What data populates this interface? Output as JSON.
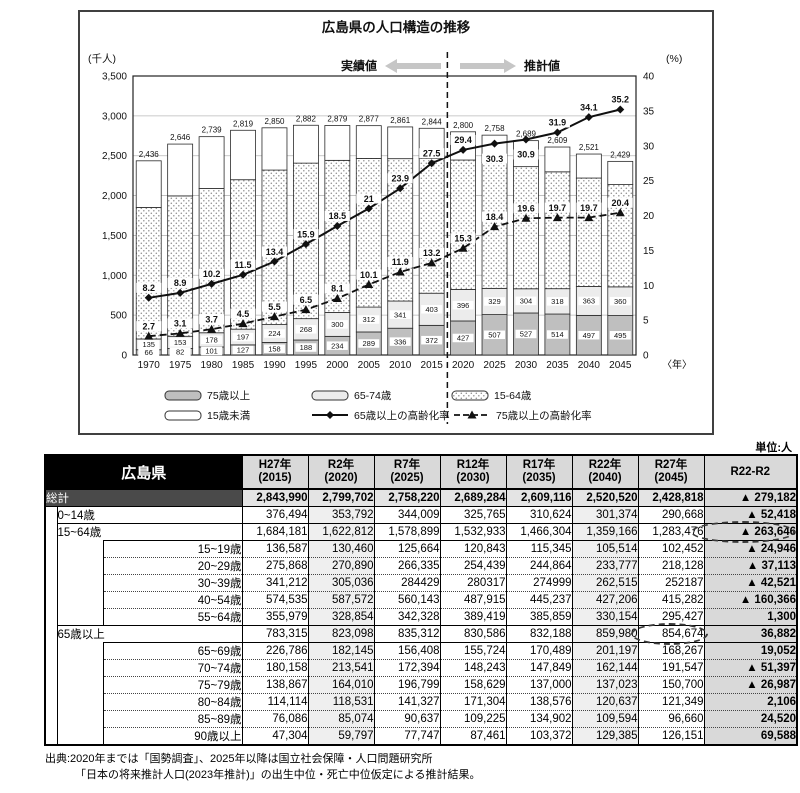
{
  "chart_data": {
    "type": "combo",
    "title": "広島県の人口構造の推移",
    "unit_left": "(千人)",
    "unit_right": "(%)",
    "actual_label": "実績値",
    "forecast_label": "推計値",
    "year_suffix": "〈年〉",
    "categories": [
      "1970",
      "1975",
      "1980",
      "1985",
      "1990",
      "1995",
      "2000",
      "2005",
      "2010",
      "2015",
      "2020",
      "2025",
      "2030",
      "2035",
      "2040",
      "2045"
    ],
    "separator_after_index": 9,
    "y_left": {
      "min": 0,
      "max": 3500,
      "ticks": [
        "0",
        "500",
        "1,000",
        "1,500",
        "2,000",
        "2,500",
        "3,000",
        "3,500"
      ]
    },
    "y_right": {
      "min": 0,
      "max": 40,
      "ticks": [
        "0",
        "5",
        "10",
        "15",
        "20",
        "25",
        "30",
        "35",
        "40"
      ]
    },
    "totals_labels": [
      "2,436",
      "2,646",
      "2,739",
      "2,819",
      "2,850",
      "2,882",
      "2,879",
      "2,877",
      "2,861",
      "2,844",
      "2,800",
      "2,758",
      "2,689",
      "2,609",
      "2,521",
      "2,429"
    ],
    "series": [
      {
        "name": "75歳以上",
        "type": "bar",
        "values": [
          66,
          82,
          101,
          127,
          158,
          188,
          234,
          289,
          336,
          372,
          427,
          507,
          527,
          514,
          497,
          495
        ],
        "labels": [
          "66",
          "82",
          "101",
          "127",
          "158",
          "188",
          "234",
          "289",
          "336",
          "372",
          "427",
          "507",
          "527",
          "514",
          "497",
          "495"
        ]
      },
      {
        "name": "65-74歳",
        "type": "bar",
        "values": [
          135,
          153,
          178,
          197,
          224,
          268,
          300,
          312,
          341,
          403,
          396,
          329,
          304,
          318,
          363,
          360
        ],
        "labels": [
          "135",
          "153",
          "178",
          "197",
          "224",
          "268",
          "300",
          "312",
          "341",
          "403",
          "396",
          "329",
          "304",
          "318",
          "363",
          "360"
        ]
      },
      {
        "name": "15-64歳",
        "type": "bar",
        "values": [
          1650,
          1761,
          1810,
          1875,
          1938,
          1951,
          1908,
          1865,
          1786,
          1693,
          1623,
          1578,
          1532,
          1466,
          1360,
          1283
        ],
        "labels": null
      },
      {
        "name": "15歳未満",
        "type": "bar",
        "values": [
          585,
          650,
          650,
          620,
          530,
          475,
          437,
          411,
          398,
          376,
          354,
          344,
          326,
          311,
          301,
          291
        ],
        "labels": null
      },
      {
        "name": "65歳以上の高齢化率",
        "type": "line",
        "style": "solid",
        "marker": "diamond",
        "values": [
          8.2,
          8.9,
          10.2,
          11.5,
          13.4,
          15.9,
          18.5,
          21,
          23.9,
          27.5,
          29.4,
          30.3,
          30.9,
          31.9,
          34.1,
          35.2
        ],
        "labels": [
          "8.2",
          "8.9",
          "10.2",
          "11.5",
          "13.4",
          "15.9",
          "18.5",
          "21",
          "23.9",
          "27.5",
          "29.4",
          "30.3",
          "30.9",
          "31.9",
          "34.1",
          "35.2"
        ],
        "label_side": [
          "a",
          "a",
          "a",
          "a",
          "a",
          "a",
          "a",
          "a",
          "a",
          "a",
          "a",
          "b",
          "b",
          "a",
          "a",
          "a"
        ]
      },
      {
        "name": "75歳以上の高齢化率",
        "type": "line",
        "style": "dashed",
        "marker": "triangle",
        "values": [
          2.7,
          3.1,
          3.7,
          4.5,
          5.5,
          6.5,
          8.1,
          10.1,
          11.9,
          13.2,
          15.3,
          18.4,
          19.6,
          19.7,
          19.7,
          20.4
        ],
        "labels": [
          "2.7",
          "3.1",
          "3.7",
          "4.5",
          "5.5",
          "6.5",
          "8.1",
          "10.1",
          "11.9",
          "13.2",
          "15.3",
          "18.4",
          "19.6",
          "19.7",
          "19.7",
          "20.4"
        ],
        "label_side": [
          "a",
          "a",
          "a",
          "a",
          "a",
          "a",
          "a",
          "a",
          "a",
          "a",
          "a",
          "a",
          "a",
          "a",
          "a",
          "a"
        ]
      }
    ],
    "legend": {
      "row1": [
        {
          "kind": "bar75",
          "label": "75歳以上"
        },
        {
          "kind": "bar6574",
          "label": "65-74歳"
        },
        {
          "kind": "bardots",
          "label": "15-64歳"
        }
      ],
      "row2": [
        {
          "kind": "barwhite",
          "label": "15歳未満"
        },
        {
          "kind": "linesolid",
          "label": "65歳以上の高齢化率"
        },
        {
          "kind": "linedashed",
          "label": "75歳以上の高齢化率"
        }
      ]
    }
  },
  "colors": {
    "bar_75plus": "#bfbfbf",
    "bar_65_74": "#ececec",
    "bar_15_64_dotted": "#ffffff",
    "bar_under15": "#ffffff",
    "line": "#101010",
    "arrow_gray": "#c6c6c6",
    "grid": "#b8b8b8",
    "table_header_bg": "#000000",
    "table_total_label_bg": "#4a4a4a",
    "table_year_header_bg": "#d9d9d9",
    "table_shaded_col_bg": "#efefef",
    "table_diff_col_bg": "#d9d9d9"
  },
  "table": {
    "unit": "単位:人",
    "corner": "広島県",
    "columns": [
      {
        "era": "H27年",
        "paren": "(2015)"
      },
      {
        "era": "R2年",
        "paren": "(2020)"
      },
      {
        "era": "R7年",
        "paren": "(2025)"
      },
      {
        "era": "R12年",
        "paren": "(2030)"
      },
      {
        "era": "R17年",
        "paren": "(2035)"
      },
      {
        "era": "R22年",
        "paren": "(2040)"
      },
      {
        "era": "R27年",
        "paren": "(2045)"
      }
    ],
    "diff_header": "R22-R2",
    "rows": [
      {
        "label": "総計",
        "level": 0,
        "style": "total",
        "values": [
          "2,843,990",
          "2,799,702",
          "2,758,220",
          "2,689,284",
          "2,609,116",
          "2,520,520",
          "2,428,818"
        ],
        "diff": "▲ 279,182"
      },
      {
        "label": "0~14歳",
        "level": 1,
        "values": [
          "376,494",
          "353,792",
          "344,009",
          "325,765",
          "310,624",
          "301,374",
          "290,668"
        ],
        "diff": "▲ 52,418"
      },
      {
        "label": "15~64歳",
        "level": 1,
        "diff_ellipse": true,
        "values": [
          "1,684,181",
          "1,622,812",
          "1,578,899",
          "1,532,933",
          "1,466,304",
          "1,359,166",
          "1,283,476"
        ],
        "diff": "▲ 263,646"
      },
      {
        "label": "15~19歳",
        "level": 2,
        "values": [
          "136,587",
          "130,460",
          "125,664",
          "120,843",
          "115,345",
          "105,514",
          "102,452"
        ],
        "diff": "▲ 24,946"
      },
      {
        "label": "20~29歳",
        "level": 2,
        "values": [
          "275,868",
          "270,890",
          "266,335",
          "254,439",
          "244,864",
          "233,777",
          "218,128"
        ],
        "diff": "▲ 37,113"
      },
      {
        "label": "30~39歳",
        "level": 2,
        "values": [
          "341,212",
          "305,036",
          "284429",
          "280317",
          "274999",
          "262,515",
          "252187"
        ],
        "diff": "▲ 42,521"
      },
      {
        "label": "40~54歳",
        "level": 2,
        "values": [
          "574,535",
          "587,572",
          "560,143",
          "487,915",
          "445,237",
          "427,206",
          "415,282"
        ],
        "diff": "▲ 160,366"
      },
      {
        "label": "55~64歳",
        "level": 2,
        "values": [
          "355,979",
          "328,854",
          "342,328",
          "389,419",
          "385,859",
          "330,154",
          "295,427"
        ],
        "diff": "1,300"
      },
      {
        "label": "65歳以上",
        "level": 1,
        "ellipse_col": 6,
        "values": [
          "783,315",
          "823,098",
          "835,312",
          "830,586",
          "832,188",
          "859,980",
          "854,674"
        ],
        "diff": "36,882"
      },
      {
        "label": "65~69歳",
        "level": 2,
        "values": [
          "226,786",
          "182,145",
          "156,408",
          "155,724",
          "170,489",
          "201,197",
          "168,267"
        ],
        "diff": "19,052"
      },
      {
        "label": "70~74歳",
        "level": 2,
        "values": [
          "180,158",
          "213,541",
          "172,394",
          "148,243",
          "147,849",
          "162,144",
          "191,547"
        ],
        "diff": "▲ 51,397"
      },
      {
        "label": "75~79歳",
        "level": 2,
        "values": [
          "138,867",
          "164,010",
          "196,799",
          "158,629",
          "137,000",
          "137,023",
          "150,700"
        ],
        "diff": "▲ 26,987"
      },
      {
        "label": "80~84歳",
        "level": 2,
        "values": [
          "114,114",
          "118,531",
          "141,327",
          "171,304",
          "138,576",
          "120,637",
          "121,349"
        ],
        "diff": "2,106"
      },
      {
        "label": "85~89歳",
        "level": 2,
        "values": [
          "76,086",
          "85,074",
          "90,637",
          "109,225",
          "134,902",
          "109,594",
          "96,660"
        ],
        "diff": "24,520"
      },
      {
        "label": "90歳以上",
        "level": 2,
        "values": [
          "47,304",
          "59,797",
          "77,747",
          "87,461",
          "103,372",
          "129,385",
          "126,151"
        ],
        "diff": "69,588"
      }
    ]
  },
  "footer": {
    "line1": "出典:2020年までは「国勢調査」、2025年以降は国立社会保障・人口問題研究所",
    "line2": "「日本の将来推計人口(2023年推計)」の出生中位・死亡中位仮定による推計結果。"
  }
}
